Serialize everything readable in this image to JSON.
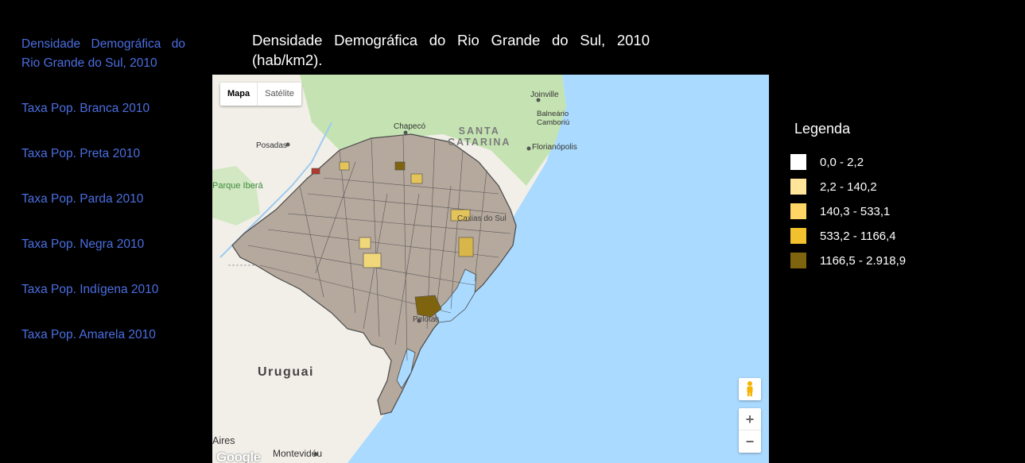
{
  "sidebar": {
    "items": [
      {
        "label": "Densidade Demográfica do Rio Grande do Sul, 2010"
      },
      {
        "label": "Taxa Pop. Branca 2010"
      },
      {
        "label": "Taxa Pop. Preta 2010"
      },
      {
        "label": "Taxa Pop. Parda 2010"
      },
      {
        "label": "Taxa Pop. Negra 2010"
      },
      {
        "label": "Taxa Pop. Indígena 2010"
      },
      {
        "label": "Taxa Pop. Amarela 2010"
      }
    ]
  },
  "title": "Densidade Demográfica do Rio Grande do Sul, 2010 (hab/km2).",
  "map": {
    "type_buttons": {
      "map": "Mapa",
      "satellite": "Satélite"
    },
    "labels": {
      "joinville": "Joinville",
      "balneario": "Balneário",
      "camboriu": "Camboriú",
      "chapeco": "Chapecó",
      "santa_catarina_1": "SANTA",
      "santa_catarina_2": "CATARINA",
      "florianopolis": "Florianópolis",
      "posadas": "Posadas",
      "parque_ibera": "Parque Iberá",
      "caxias": "Caxias do Sul",
      "pelotas": "Pelotas",
      "uruguai": "Uruguai",
      "aires": "Aires",
      "montevideu": "Montevidéu"
    },
    "controls": {
      "zoom_in": "+",
      "zoom_out": "−"
    },
    "logo": "Google",
    "colors": {
      "water": "#aadaff",
      "land": "#f2efe9",
      "green": "#c5e3b2",
      "state_fill": "#b5a89d",
      "border": "#555"
    }
  },
  "legend": {
    "title": "Legenda",
    "items": [
      {
        "label": "0,0 - 2,2",
        "color": "#ffffff"
      },
      {
        "label": "2,2 - 140,2",
        "color": "#ffe49a"
      },
      {
        "label": "140,3 - 533,1",
        "color": "#ffd666"
      },
      {
        "label": "533,2 - 1166,4",
        "color": "#f2c12e"
      },
      {
        "label": "1166,5 - 2.918,9",
        "color": "#7f6410"
      }
    ]
  }
}
